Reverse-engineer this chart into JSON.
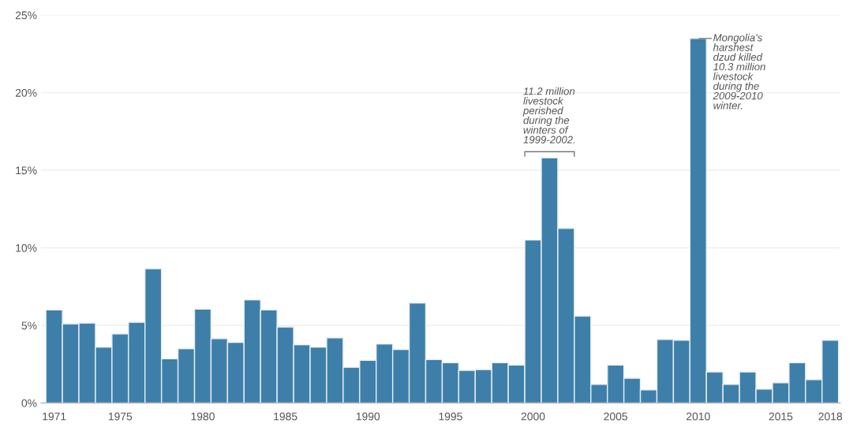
{
  "chart_data": {
    "type": "bar",
    "x": [
      1971,
      1972,
      1973,
      1974,
      1975,
      1976,
      1977,
      1978,
      1979,
      1980,
      1981,
      1982,
      1983,
      1984,
      1985,
      1986,
      1987,
      1988,
      1989,
      1990,
      1991,
      1992,
      1993,
      1994,
      1995,
      1996,
      1997,
      1998,
      1999,
      2000,
      2001,
      2002,
      2003,
      2004,
      2005,
      2006,
      2007,
      2008,
      2009,
      2010,
      2011,
      2012,
      2013,
      2014,
      2015,
      2016,
      2017,
      2018
    ],
    "values": [
      6.0,
      5.1,
      5.15,
      3.6,
      4.45,
      5.2,
      8.65,
      2.85,
      3.5,
      6.05,
      4.15,
      3.9,
      6.65,
      6.0,
      4.9,
      3.75,
      3.6,
      4.2,
      2.3,
      2.75,
      3.8,
      3.45,
      6.45,
      2.8,
      2.6,
      2.1,
      2.15,
      2.6,
      2.45,
      10.5,
      15.8,
      11.25,
      5.6,
      1.2,
      2.45,
      1.6,
      0.85,
      4.1,
      4.05,
      23.5,
      2.0,
      1.2,
      2.0,
      0.9,
      1.3,
      2.6,
      1.5,
      4.05
    ],
    "color": "#3e7fa9",
    "xlim": [
      1970.2,
      2018.6
    ],
    "xticks": [
      1971,
      1975,
      1980,
      1985,
      1990,
      1995,
      2000,
      2005,
      2010,
      2015,
      2018
    ],
    "ylim": [
      0,
      25
    ],
    "yticks": [
      {
        "value": 0,
        "label": "0%"
      },
      {
        "value": 5,
        "label": "5%"
      },
      {
        "value": 10,
        "label": "10%"
      },
      {
        "value": 15,
        "label": "15%"
      },
      {
        "value": 20,
        "label": "20%"
      },
      {
        "value": 25,
        "label": "25%"
      }
    ],
    "grid": "y",
    "annotations": [
      {
        "text": "11.2 million\nlivestock\nperished\nduring the\nwinters of\n1999-2002.",
        "x": 2001,
        "y": 15.8
      },
      {
        "text": "Mongolia's\nharshest\ndzud killed\n10.3 million\nlivestock\nduring the\n2009-2010\nwinter.",
        "x": 2010,
        "y": 23.5
      }
    ]
  }
}
